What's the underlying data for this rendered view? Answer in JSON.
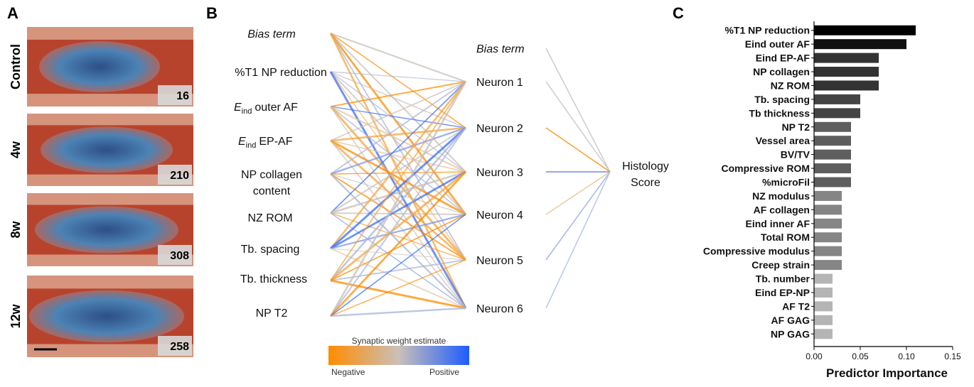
{
  "panel_a": {
    "letter": "A",
    "rows": [
      {
        "label": "Control",
        "score": "16"
      },
      {
        "label": "4w",
        "score": "210"
      },
      {
        "label": "8w",
        "score": "308"
      },
      {
        "label": "12w",
        "score": "258"
      }
    ]
  },
  "panel_b": {
    "letter": "B",
    "inputs": [
      {
        "text": "Bias term"
      },
      {
        "text": "%T1 NP reduction"
      },
      {
        "symbol": "E",
        "subscript": "ind",
        "text": "outer AF"
      },
      {
        "symbol": "E",
        "subscript": "ind",
        "text": "EP-AF"
      },
      {
        "lines": [
          "NP collagen",
          "content"
        ]
      },
      {
        "text": "NZ ROM"
      },
      {
        "text": "Tb. spacing"
      },
      {
        "text": "Tb. thickness"
      },
      {
        "text": "NP T2"
      }
    ],
    "hidden": [
      "Bias term",
      "Neuron 1",
      "Neuron 2",
      "Neuron 3",
      "Neuron 4",
      "Neuron 5",
      "Neuron 6"
    ],
    "output": [
      "Histology",
      "Score"
    ],
    "legend": {
      "title": "Synaptic weight estimate",
      "low": "Negative",
      "high": "Positive"
    }
  },
  "chart_data": {
    "type": "barh",
    "panel_letter": "C",
    "xlabel": "Predictor Importance",
    "categories": [
      "%T1 NP reduction",
      "Eind outer AF",
      "Eind EP-AF",
      "NP collagen",
      "NZ ROM",
      "Tb. spacing",
      "Tb thickness",
      "NP T2",
      "Vessel area",
      "BV/TV",
      "Compressive ROM",
      "%microFil",
      "NZ modulus",
      "AF collagen",
      "Eind inner AF",
      "Total ROM",
      "Compressive modulus",
      "Creep strain",
      "Tb. number",
      "Eind EP-NP",
      "AF T2",
      "AF GAG",
      "NP GAG"
    ],
    "values": [
      0.11,
      0.1,
      0.07,
      0.07,
      0.07,
      0.05,
      0.05,
      0.04,
      0.04,
      0.04,
      0.04,
      0.04,
      0.03,
      0.03,
      0.03,
      0.03,
      0.03,
      0.03,
      0.02,
      0.02,
      0.02,
      0.02,
      0.02
    ],
    "colors": [
      "#000000",
      "#111111",
      "#333333",
      "#333333",
      "#333333",
      "#444444",
      "#444444",
      "#5e5e5e",
      "#5e5e5e",
      "#5e5e5e",
      "#5e5e5e",
      "#5e5e5e",
      "#858585",
      "#858585",
      "#858585",
      "#858585",
      "#858585",
      "#858585",
      "#b5b5b5",
      "#b5b5b5",
      "#b5b5b5",
      "#b5b5b5",
      "#b5b5b5"
    ],
    "xlim": [
      0,
      0.15
    ],
    "xticks": [
      {
        "value": 0,
        "label": "0.00"
      },
      {
        "value": 0.05,
        "label": "0.05"
      },
      {
        "value": 0.1,
        "label": "0.10"
      },
      {
        "value": 0.15,
        "label": "0.15"
      }
    ]
  }
}
